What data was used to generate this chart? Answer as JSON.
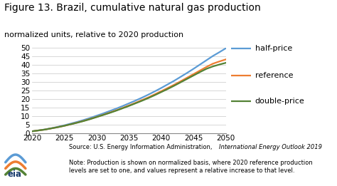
{
  "title": "Figure 13. Brazil, cumulative natural gas production",
  "subtitle": "normalized units, relative to 2020 production",
  "years": [
    2020,
    2021,
    2022,
    2023,
    2024,
    2025,
    2026,
    2027,
    2028,
    2029,
    2030,
    2031,
    2032,
    2033,
    2034,
    2035,
    2036,
    2037,
    2038,
    2039,
    2040,
    2041,
    2042,
    2043,
    2044,
    2045,
    2046,
    2047,
    2048,
    2049,
    2050
  ],
  "half_price": [
    1.0,
    1.5,
    2.1,
    2.8,
    3.6,
    4.5,
    5.5,
    6.5,
    7.6,
    8.8,
    10.1,
    11.4,
    12.8,
    14.2,
    15.7,
    17.3,
    18.9,
    20.6,
    22.4,
    24.3,
    26.3,
    28.4,
    30.5,
    32.8,
    35.1,
    37.5,
    40.0,
    42.5,
    45.0,
    47.2,
    49.5
  ],
  "reference": [
    1.0,
    1.5,
    2.0,
    2.7,
    3.4,
    4.2,
    5.1,
    6.1,
    7.1,
    8.2,
    9.4,
    10.6,
    11.9,
    13.2,
    14.6,
    16.1,
    17.6,
    19.2,
    20.8,
    22.6,
    24.4,
    26.3,
    28.2,
    30.2,
    32.3,
    34.4,
    36.5,
    38.6,
    40.5,
    41.8,
    43.0
  ],
  "double_price": [
    1.0,
    1.5,
    2.0,
    2.7,
    3.4,
    4.2,
    5.1,
    6.0,
    7.0,
    8.1,
    9.3,
    10.5,
    11.7,
    13.0,
    14.4,
    15.8,
    17.3,
    18.8,
    20.4,
    22.1,
    23.9,
    25.7,
    27.6,
    29.6,
    31.6,
    33.6,
    35.6,
    37.5,
    38.9,
    40.0,
    41.0
  ],
  "half_price_color": "#5b9bd5",
  "reference_color": "#ed7d31",
  "double_price_color": "#548235",
  "xlim": [
    2020,
    2050
  ],
  "ylim": [
    0,
    50
  ],
  "yticks": [
    0,
    5,
    10,
    15,
    20,
    25,
    30,
    35,
    40,
    45,
    50
  ],
  "xticks": [
    2020,
    2025,
    2030,
    2035,
    2040,
    2045,
    2050
  ],
  "grid_color": "#c8c8c8",
  "background_color": "#ffffff",
  "legend_labels": [
    "half-price",
    "reference",
    "double-price"
  ],
  "title_fontsize": 10,
  "subtitle_fontsize": 8,
  "axis_fontsize": 7.5,
  "legend_fontsize": 8,
  "footer_fontsize": 6.0
}
